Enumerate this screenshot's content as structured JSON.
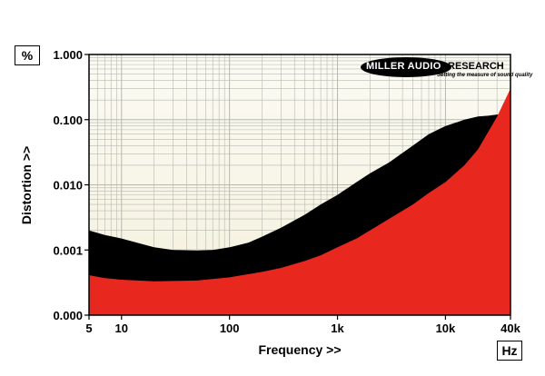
{
  "chart_data": {
    "type": "area",
    "xlabel": "Frequency >>",
    "ylabel": "Distortion >>",
    "x_unit": "Hz",
    "y_unit": "%",
    "x_scale": "log",
    "y_scale": "log",
    "xlim": [
      5,
      40000
    ],
    "ylim": [
      0.0001,
      1
    ],
    "grid": true,
    "x_ticks": [
      {
        "value": 5,
        "label": "5"
      },
      {
        "value": 10,
        "label": "10"
      },
      {
        "value": 100,
        "label": "100"
      },
      {
        "value": 1000,
        "label": "1k"
      },
      {
        "value": 10000,
        "label": "10k"
      },
      {
        "value": 40000,
        "label": "40k"
      }
    ],
    "y_ticks": [
      {
        "value": 0.0001,
        "label": "0.000"
      },
      {
        "value": 0.001,
        "label": "0.001"
      },
      {
        "value": 0.01,
        "label": "0.010"
      },
      {
        "value": 0.1,
        "label": "0.100"
      },
      {
        "value": 1,
        "label": "1.000"
      }
    ],
    "series": [
      {
        "color": "#000000",
        "points": [
          [
            5,
            0.002
          ],
          [
            7,
            0.0017
          ],
          [
            10,
            0.0015
          ],
          [
            15,
            0.00125
          ],
          [
            20,
            0.0011
          ],
          [
            30,
            0.001
          ],
          [
            50,
            0.00098
          ],
          [
            70,
            0.001
          ],
          [
            100,
            0.0011
          ],
          [
            150,
            0.0013
          ],
          [
            200,
            0.0016
          ],
          [
            300,
            0.0022
          ],
          [
            500,
            0.0035
          ],
          [
            700,
            0.005
          ],
          [
            1000,
            0.007
          ],
          [
            1500,
            0.011
          ],
          [
            2000,
            0.015
          ],
          [
            3000,
            0.022
          ],
          [
            5000,
            0.04
          ],
          [
            7000,
            0.06
          ],
          [
            10000,
            0.08
          ],
          [
            15000,
            0.1
          ],
          [
            20000,
            0.112
          ],
          [
            25000,
            0.115
          ],
          [
            30000,
            0.12
          ],
          [
            40000,
            0.12
          ]
        ]
      },
      {
        "color": "#e8281e",
        "points": [
          [
            5,
            0.00041
          ],
          [
            7,
            0.00037
          ],
          [
            10,
            0.00035
          ],
          [
            20,
            0.00033
          ],
          [
            50,
            0.00034
          ],
          [
            100,
            0.00038
          ],
          [
            200,
            0.00046
          ],
          [
            300,
            0.00053
          ],
          [
            500,
            0.00068
          ],
          [
            700,
            0.00083
          ],
          [
            1000,
            0.0011
          ],
          [
            1500,
            0.0015
          ],
          [
            2000,
            0.002
          ],
          [
            3000,
            0.003
          ],
          [
            5000,
            0.005
          ],
          [
            7000,
            0.0075
          ],
          [
            10000,
            0.011
          ],
          [
            15000,
            0.02
          ],
          [
            20000,
            0.035
          ],
          [
            30000,
            0.11
          ],
          [
            40000,
            0.3
          ]
        ]
      }
    ]
  },
  "logo": {
    "brand_left": "MILLER AUDIO",
    "brand_right": "RESEARCH",
    "tagline": "Setting the measure of sound quality"
  },
  "colors": {
    "plot_background_top": "#fbfbf4",
    "plot_background_bottom": "#f4f0dc",
    "grid": "#b8b8b0",
    "upper_band": "#000000",
    "lower_band": "#e8281e"
  }
}
